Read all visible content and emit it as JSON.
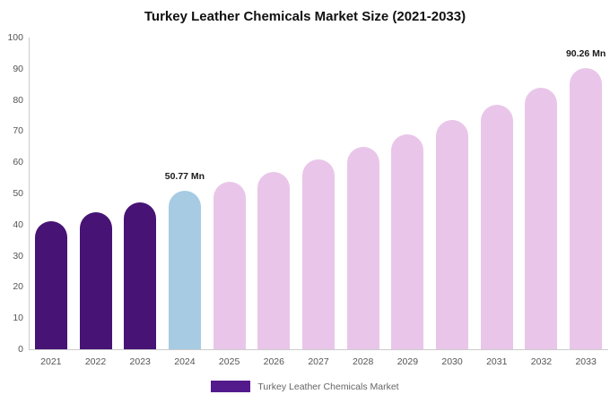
{
  "chart_data": {
    "type": "bar",
    "title": "Turkey Leather Chemicals Market Size (2021-2033)",
    "categories": [
      "2021",
      "2022",
      "2023",
      "2024",
      "2025",
      "2026",
      "2027",
      "2028",
      "2029",
      "2030",
      "2031",
      "2032",
      "2033"
    ],
    "values": [
      41,
      44,
      47.2,
      50.77,
      53.6,
      57,
      60.9,
      64.9,
      69.1,
      73.6,
      78.4,
      83.9,
      90.26
    ],
    "bar_colors": [
      "#471374",
      "#471374",
      "#471374",
      "#a6cbe3",
      "#e9c6e9",
      "#e9c6e9",
      "#e9c6e9",
      "#e9c6e9",
      "#e9c6e9",
      "#e9c6e9",
      "#e9c6e9",
      "#e9c6e9",
      "#e9c6e9"
    ],
    "annotations": [
      {
        "category": "2024",
        "text": "50.77 Mn"
      },
      {
        "category": "2033",
        "text": "90.26 Mn"
      }
    ],
    "xlabel": "",
    "ylabel": "",
    "ylim": [
      0,
      100
    ],
    "ytick_step": 10,
    "grid": false,
    "legend": {
      "position": "bottom",
      "entries": [
        {
          "label": "Turkey Leather Chemicals Market",
          "color": "#531a8c"
        }
      ]
    }
  },
  "colors": {
    "background": "#ffffff",
    "axis_line": "#cccccc",
    "tick_text": "#555555",
    "annotation_text": "#1a1a1a",
    "legend_text": "#666666"
  }
}
